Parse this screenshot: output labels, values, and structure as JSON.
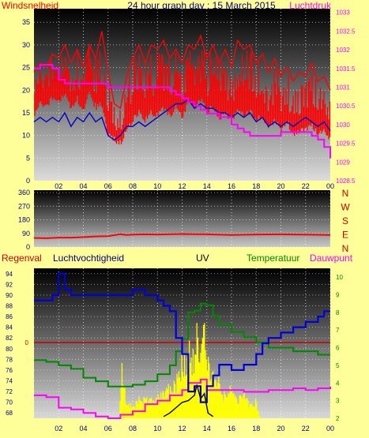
{
  "header": {
    "left_label": "Windsnelheid",
    "title": "24 hour graph day : 15 March 2015",
    "right_label": "Luchtdruk"
  },
  "panel3_labels": {
    "regenval": "Regenval",
    "luchtvochtigheid": "Luchtvochtigheid",
    "uv": "UV",
    "temperatuur": "Temperatuur",
    "dauwpunt": "Dauwpunt"
  },
  "colors": {
    "wind": "#ff0000",
    "wind_avg": "#0000cc",
    "pressure": "#ff00ff",
    "direction": "#ff0000",
    "humidity": "#0000dd",
    "temperature": "#008800",
    "dewpoint": "#ff00ff",
    "uv": "#ffff00",
    "uv_peak": "#000000",
    "rain_line": "#cc0000",
    "label_dark": "#000080"
  },
  "chart_data": [
    {
      "type": "line",
      "x_ticks": [
        "02",
        "04",
        "06",
        "08",
        "10",
        "12",
        "14",
        "16",
        "18",
        "20",
        "22",
        "00"
      ],
      "ylabel": "Windsnelheid",
      "ylim": [
        0,
        38
      ],
      "y_ticks": [
        "0",
        "5",
        "10",
        "15",
        "20",
        "25",
        "30",
        "35"
      ],
      "y2label": "Luchtdruk",
      "y2lim": [
        1028.5,
        1033.1
      ],
      "y2_ticks": [
        "1028.5",
        "1029",
        "1029.5",
        "1030",
        "1030.5",
        "1031",
        "1031.5",
        "1032",
        "1032.5",
        "1033"
      ],
      "grid": true,
      "series": [
        {
          "name": "Windsnelheid",
          "axis": "left",
          "kind": "gust",
          "x": [
            0,
            0.5,
            1,
            1.5,
            2,
            2.5,
            3,
            3.5,
            4,
            4.5,
            5,
            5.5,
            6,
            6.5,
            7,
            7.5,
            8,
            8.5,
            9,
            9.5,
            10,
            10.5,
            11,
            11.5,
            12,
            12.5,
            13,
            13.5,
            14,
            14.5,
            15,
            15.5,
            16,
            16.5,
            17,
            17.5,
            18,
            18.5,
            19,
            19.5,
            20,
            20.5,
            21,
            21.5,
            22,
            22.5,
            23,
            23.5,
            24
          ],
          "values": [
            24,
            26,
            25,
            28,
            27,
            30,
            26,
            29,
            25,
            30,
            27,
            33,
            24,
            17,
            16,
            23,
            27,
            30,
            26,
            30,
            29,
            31,
            27,
            29,
            26,
            30,
            29,
            32,
            27,
            30,
            26,
            29,
            25,
            31,
            29,
            30,
            26,
            28,
            24,
            27,
            23,
            25,
            22,
            24,
            23,
            26,
            22,
            23,
            20
          ],
          "min": [
            15,
            18,
            17,
            19,
            18,
            20,
            17,
            19,
            16,
            20,
            17,
            18,
            11,
            10,
            9,
            12,
            14,
            16,
            14,
            16,
            15,
            17,
            15,
            17,
            15,
            18,
            17,
            19,
            16,
            17,
            14,
            16,
            14,
            17,
            15,
            16,
            14,
            15,
            13,
            14,
            12,
            14,
            11,
            12,
            12,
            13,
            11,
            12,
            10
          ]
        },
        {
          "name": "Gemiddelde wind",
          "axis": "left",
          "x": [
            0,
            0.5,
            1,
            1.5,
            2,
            2.5,
            3,
            3.5,
            4,
            4.5,
            5,
            5.5,
            6,
            6.5,
            7,
            7.5,
            8,
            8.5,
            9,
            9.5,
            10,
            10.5,
            11,
            11.5,
            12,
            12.5,
            13,
            13.5,
            14,
            14.5,
            15,
            15.5,
            16,
            16.5,
            17,
            17.5,
            18,
            18.5,
            19,
            19.5,
            20,
            20.5,
            21,
            21.5,
            22,
            22.5,
            23,
            23.5,
            24
          ],
          "values": [
            13,
            14,
            13,
            14,
            13,
            15,
            12,
            14,
            13,
            15,
            13,
            14,
            10,
            9,
            10,
            12,
            12,
            13,
            12,
            13,
            14,
            15,
            16,
            17,
            17,
            18,
            16,
            17,
            16,
            16,
            15,
            15,
            14,
            15,
            14,
            15,
            13,
            14,
            12,
            13,
            12,
            13,
            12,
            13,
            14,
            13,
            12,
            13,
            11
          ]
        },
        {
          "name": "Luchtdruk",
          "axis": "right",
          "x": [
            0,
            0.5,
            1,
            1.5,
            2,
            2.5,
            3,
            3.5,
            4,
            5,
            6,
            7,
            8,
            9,
            10,
            11,
            11.5,
            12,
            12.5,
            13,
            13.5,
            14,
            15,
            16,
            16.5,
            17,
            17.5,
            18,
            19,
            20,
            21,
            22,
            22.5,
            23,
            23.5,
            24
          ],
          "values": [
            1031.5,
            1031.6,
            1031.6,
            1031.5,
            1031.2,
            1031.1,
            1031.1,
            1031.1,
            1031.1,
            1031.1,
            1031.0,
            1031.0,
            1031.0,
            1031.0,
            1031.0,
            1030.9,
            1030.8,
            1030.7,
            1030.6,
            1030.5,
            1030.4,
            1030.3,
            1030.2,
            1030.0,
            1029.9,
            1029.8,
            1029.7,
            1029.7,
            1029.7,
            1029.8,
            1029.8,
            1029.8,
            1029.7,
            1029.6,
            1029.4,
            1029.1
          ]
        }
      ]
    },
    {
      "type": "line",
      "ylim": [
        0,
        360
      ],
      "y_ticks": [
        "0",
        "90",
        "180",
        "270",
        "360"
      ],
      "right_labels": [
        "N",
        "W",
        "S",
        "E",
        "N"
      ],
      "grid": true,
      "series": [
        {
          "name": "Windrichting",
          "x": [
            0,
            1,
            2,
            3,
            4,
            5,
            6,
            7,
            7.5,
            8,
            9,
            10,
            12,
            14,
            16,
            18,
            20,
            22,
            24
          ],
          "values": [
            60,
            58,
            62,
            62,
            65,
            70,
            72,
            85,
            80,
            82,
            84,
            83,
            86,
            84,
            80,
            83,
            84,
            82,
            80
          ]
        }
      ]
    },
    {
      "type": "line",
      "ylim": [
        67,
        95
      ],
      "y_ticks": [
        "68",
        "70",
        "72",
        "74",
        "76",
        "78",
        "80",
        "82",
        "84",
        "86",
        "88",
        "90",
        "92",
        "94"
      ],
      "y2lim": [
        2,
        10.5
      ],
      "y2_ticks": [
        "2",
        "3",
        "4",
        "5",
        "6",
        "7",
        "8",
        "9",
        "10"
      ],
      "rain_marker": "0",
      "grid": true,
      "series": [
        {
          "name": "Luchtvochtigheid",
          "axis": "left",
          "x": [
            0,
            0.5,
            1,
            1.5,
            2,
            2.5,
            3,
            4,
            5,
            6,
            7,
            8,
            9,
            9.5,
            10,
            10.5,
            11,
            11.5,
            12,
            12.5,
            13,
            13.5,
            14,
            14.5,
            15,
            16,
            17,
            18,
            18.5,
            19,
            20,
            21,
            22,
            23,
            23.5,
            24
          ],
          "values": [
            89,
            89,
            89,
            90,
            94,
            91,
            90,
            90,
            90,
            90,
            90,
            91,
            90,
            90,
            89,
            88,
            87,
            82,
            79,
            72,
            73,
            70,
            73,
            75,
            77,
            76,
            77,
            79,
            81,
            82,
            83,
            84,
            85,
            86,
            87,
            87
          ]
        },
        {
          "name": "Temperatuur",
          "axis": "right",
          "x": [
            0,
            1,
            2,
            3,
            4,
            5,
            6,
            7,
            8,
            9,
            10,
            11,
            11.5,
            12,
            12.5,
            13,
            13.5,
            14,
            14.5,
            15,
            16,
            17,
            18,
            19,
            20,
            21,
            22,
            23,
            24
          ],
          "values": [
            5.3,
            5.2,
            5.0,
            4.8,
            4.3,
            4.1,
            3.8,
            3.8,
            3.9,
            4.1,
            4.5,
            5.0,
            5.8,
            6.5,
            8.0,
            8.1,
            8.5,
            8.4,
            7.8,
            7.3,
            6.9,
            6.6,
            6.3,
            6.0,
            6.0,
            5.8,
            5.8,
            5.6,
            5.6
          ]
        },
        {
          "name": "Dauwpunt",
          "axis": "right",
          "x": [
            0,
            1,
            2,
            3,
            4,
            5,
            6,
            7,
            8,
            9,
            10,
            11,
            12,
            12.5,
            13,
            13.5,
            14,
            15,
            16,
            17,
            18,
            19,
            20,
            21,
            22,
            23,
            24
          ],
          "values": [
            3.3,
            3.2,
            2.6,
            2.5,
            2.3,
            2.1,
            2.0,
            2.2,
            2.4,
            2.8,
            3.0,
            3.3,
            3.6,
            4.0,
            4.0,
            4.2,
            3.6,
            3.6,
            3.6,
            3.5,
            3.5,
            3.6,
            3.6,
            3.7,
            3.6,
            3.7,
            3.8
          ]
        },
        {
          "name": "UV",
          "axis": "right",
          "kind": "fill",
          "x": [
            6.9,
            7.1,
            7.5,
            8,
            8.5,
            9,
            9.5,
            10,
            10.5,
            11,
            11.5,
            12,
            12.3,
            12.6,
            12.9,
            13.2,
            13.5,
            13.8,
            14.1,
            14.4,
            14.7,
            15,
            15.5,
            16,
            16.5,
            17,
            17.5,
            18,
            18.3
          ],
          "values": [
            2,
            5.4,
            3.0,
            2.8,
            3.3,
            3.3,
            3.2,
            3.4,
            3.7,
            4.1,
            4.4,
            5.8,
            6.1,
            6.9,
            6.0,
            8.3,
            6.0,
            8.0,
            5.6,
            4.5,
            5.5,
            4.5,
            3.5,
            4.0,
            3.2,
            3.8,
            2.9,
            3.2,
            2
          ]
        },
        {
          "name": "UV max",
          "axis": "right",
          "x": [
            10.5,
            11,
            11.5,
            12,
            12.5,
            13,
            13.2,
            13.5,
            13.8,
            14.1,
            14.5
          ],
          "values": [
            2.1,
            2.3,
            2.6,
            2.9,
            3.0,
            3.3,
            3.9,
            3.1,
            3.4,
            2.3,
            2.1
          ]
        }
      ]
    }
  ]
}
